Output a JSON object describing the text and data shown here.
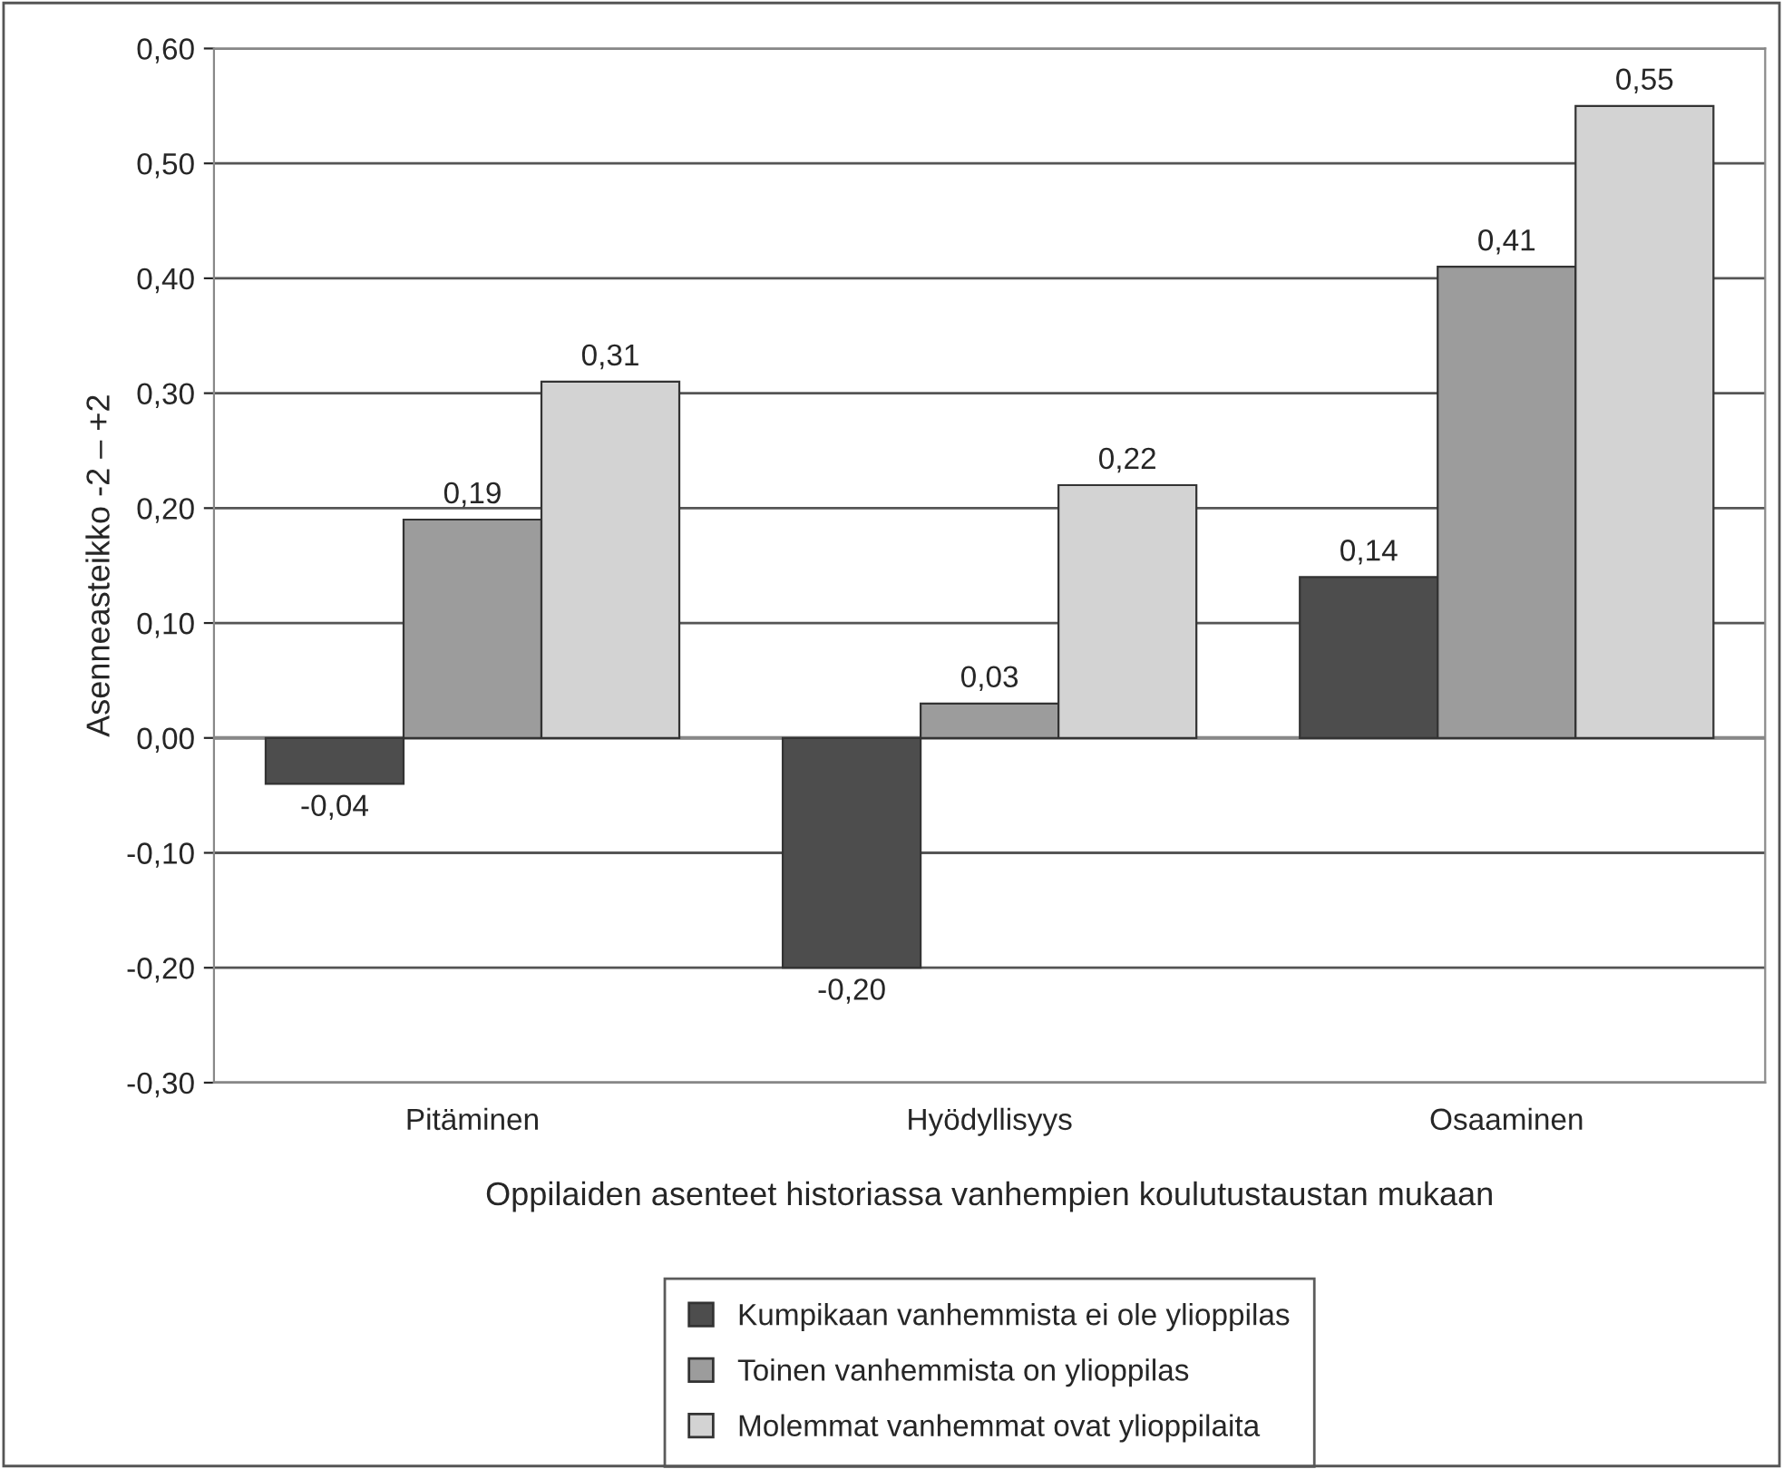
{
  "chart_data": {
    "type": "bar",
    "xlabel": "Oppilaiden asenteet historiassa vanhempien koulutustaustan mukaan",
    "ylabel": "Asenneasteikko -2 – +2",
    "categories": [
      "Pitäminen",
      "Hyödyllisyys",
      "Osaaminen"
    ],
    "series": [
      {
        "name": "Kumpikaan vanhemmista ei ole ylioppilas",
        "color": "#4d4d4d",
        "values": [
          -0.04,
          -0.2,
          0.14
        ],
        "value_labels": [
          "-0,04",
          "-0,20",
          "0,14"
        ]
      },
      {
        "name": "Toinen vanhemmista on ylioppilas",
        "color": "#9c9c9c",
        "values": [
          0.19,
          0.03,
          0.41
        ],
        "value_labels": [
          "0,19",
          "0,03",
          "0,41"
        ]
      },
      {
        "name": "Molemmat vanhemmat ovat ylioppilaita",
        "color": "#d3d3d3",
        "values": [
          0.31,
          0.22,
          0.55
        ],
        "value_labels": [
          "0,31",
          "0,22",
          "0,55"
        ]
      }
    ],
    "ylim": [
      -0.3,
      0.6
    ],
    "yticks": [
      {
        "value": -0.3,
        "label": "-0,30"
      },
      {
        "value": -0.2,
        "label": "-0,20"
      },
      {
        "value": -0.1,
        "label": "-0,10"
      },
      {
        "value": 0,
        "label": "0,00"
      },
      {
        "value": 0.1,
        "label": "0,10"
      },
      {
        "value": 0.2,
        "label": "0,20"
      },
      {
        "value": 0.3,
        "label": "0,30"
      },
      {
        "value": 0.4,
        "label": "0,40"
      },
      {
        "value": 0.5,
        "label": "0,50"
      },
      {
        "value": 0.6,
        "label": "0,60"
      }
    ],
    "grid": "y",
    "legend": "bottom"
  }
}
